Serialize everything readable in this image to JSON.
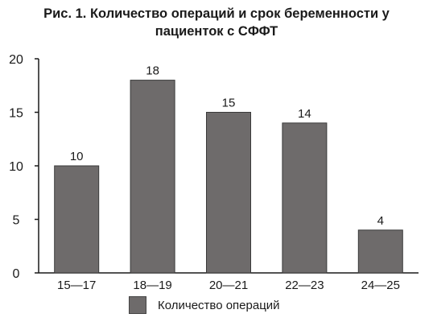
{
  "title": {
    "line1": "Рис. 1. Количество операций и срок беременности у",
    "line2": "пациенток с СФФТ"
  },
  "colors": {
    "bar_fill": "#6e6b6b",
    "bar_stroke": "#3a3a3a",
    "axis": "#1a1a1a",
    "text": "#1a1a1a"
  },
  "chart_data": {
    "type": "bar",
    "categories": [
      "15—17",
      "18—19",
      "20—21",
      "22—23",
      "24—25"
    ],
    "series": [
      {
        "name": "Количество операций",
        "values": [
          10,
          18,
          15,
          14,
          4
        ]
      }
    ],
    "data_labels": [
      "10",
      "18",
      "15",
      "14",
      "4"
    ],
    "y_ticks": [
      0,
      5,
      10,
      15,
      20
    ],
    "ylim": [
      0,
      20
    ],
    "grid": false,
    "legend_position": "bottom"
  }
}
